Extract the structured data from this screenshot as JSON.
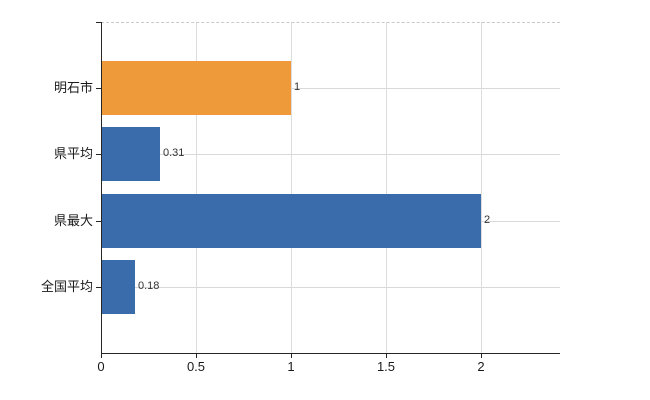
{
  "chart_data": {
    "type": "bar",
    "orientation": "horizontal",
    "title": "",
    "xlabel": "",
    "ylabel": "",
    "categories": [
      "明石市",
      "県平均",
      "県最大",
      "全国平均"
    ],
    "values": [
      1,
      0.31,
      2,
      0.18
    ],
    "value_labels": [
      "1",
      "0.31",
      "2",
      "0.18"
    ],
    "series": [
      {
        "name": "values",
        "values": [
          1,
          0.31,
          2,
          0.18
        ]
      }
    ],
    "highlight_category": "明石市",
    "bar_colors": [
      "#EF9A3A",
      "#3A6CAC",
      "#3A6CAC",
      "#3A6CAC"
    ],
    "x_ticks": [
      0,
      0.5,
      1,
      1.5,
      2
    ],
    "x_tick_labels": [
      "0",
      "0.5",
      "1",
      "1.5",
      "2"
    ],
    "xlim": [
      0,
      2.42
    ],
    "grid": true,
    "legend_position": "none"
  },
  "colors": {
    "highlight_bar": "#EF9A3A",
    "default_bar": "#3A6CAC",
    "axis": "#262626",
    "h_gridline": "#d9d9d9",
    "v_gridline": "#dcdcdc",
    "top_border": "#c9c9c9",
    "background": "#ffffff",
    "label_text": "#1a1a1a",
    "value_text": "#333333"
  }
}
